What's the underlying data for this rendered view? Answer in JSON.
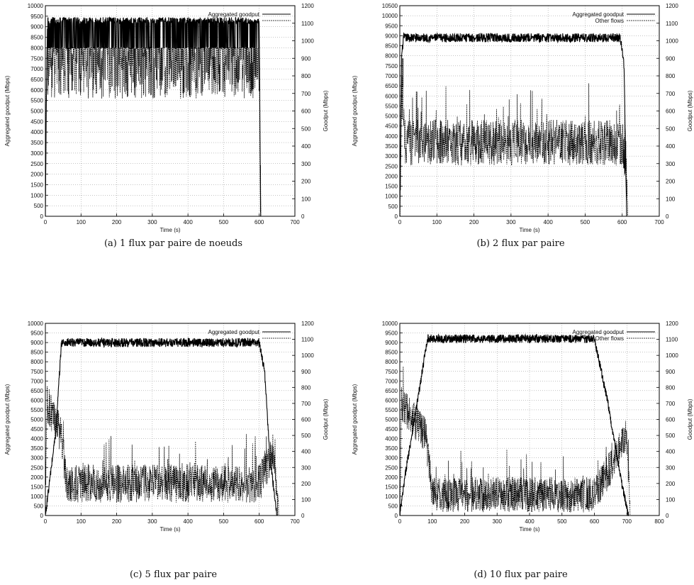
{
  "chart_data": [
    {
      "id": "a",
      "type": "line",
      "caption": "(a) 1 flux par paire de noeuds",
      "xlabel": "Time (s)",
      "ylabel": "Aggregated goodput (Mbps)",
      "y2label": "Goodput (Mbps)",
      "xlim": [
        0,
        700
      ],
      "xticks": [
        0,
        100,
        200,
        300,
        400,
        500,
        600,
        700
      ],
      "ylim": [
        0,
        10000
      ],
      "ystep": 500,
      "y2lim": [
        0,
        1200
      ],
      "y2step": 100,
      "grid": true,
      "legend_position": "top-right",
      "series": [
        {
          "name": "Aggregated goodput",
          "axis": "left",
          "style": "solid",
          "points": [
            [
              0,
              0
            ],
            [
              3,
              6000
            ],
            [
              6,
              9300
            ],
            [
              600,
              9300
            ],
            [
              602,
              4000
            ],
            [
              604,
              0
            ]
          ],
          "noise": 150,
          "low": 8000,
          "high": 9450,
          "dip_prob": 0.42
        },
        {
          "name": "",
          "axis": "right",
          "style": "dashed",
          "points": [
            [
              0,
              0
            ],
            [
              3,
              600
            ],
            [
              6,
              900
            ],
            [
              600,
              900
            ],
            [
              602,
              300
            ],
            [
              605,
              0
            ]
          ],
          "noise": 230,
          "low": 0,
          "high": 960,
          "dip_prob": 0.0
        }
      ]
    },
    {
      "id": "b",
      "type": "line",
      "caption": "(b) 2 flux par paire",
      "xlabel": "Time (s)",
      "ylabel": "Aggregated goodput (Mbps)",
      "y2label": "Goodput (Mbps)",
      "xlim": [
        0,
        700
      ],
      "xticks": [
        0,
        100,
        200,
        300,
        400,
        500,
        600,
        700
      ],
      "ylim": [
        0,
        10500
      ],
      "ystep": 500,
      "y2lim": [
        0,
        1200
      ],
      "y2step": 100,
      "grid": true,
      "legend_position": "top-right",
      "series": [
        {
          "name": "Aggregated goodput",
          "axis": "left",
          "style": "solid",
          "points": [
            [
              0,
              0
            ],
            [
              5,
              8000
            ],
            [
              10,
              8900
            ],
            [
              595,
              8900
            ],
            [
              605,
              7500
            ],
            [
              612,
              0
            ]
          ],
          "noise": 220,
          "low": 0,
          "high": 10000,
          "dip_prob": 0.0
        },
        {
          "name": "Other flows",
          "axis": "right",
          "style": "dashed",
          "points": [
            [
              0,
              0
            ],
            [
              5,
              700
            ],
            [
              15,
              420
            ],
            [
              600,
              420
            ],
            [
              610,
              300
            ],
            [
              615,
              0
            ]
          ],
          "noise": 130,
          "low": 0,
          "high": 900,
          "dip_prob": 0.0
        }
      ]
    },
    {
      "id": "c",
      "type": "line",
      "caption": "(c) 5 flux par paire",
      "xlabel": "Time (s)",
      "ylabel": "Aggregated goodput (Mbps)",
      "y2label": "Goodput (Mbps)",
      "xlim": [
        0,
        700
      ],
      "xticks": [
        0,
        100,
        200,
        300,
        400,
        500,
        600,
        700
      ],
      "ylim": [
        0,
        10000
      ],
      "ystep": 500,
      "y2lim": [
        0,
        1200
      ],
      "y2step": 100,
      "grid": true,
      "legend_position": "top-right",
      "series": [
        {
          "name": "Aggregated goodput",
          "axis": "left",
          "style": "solid",
          "points": [
            [
              0,
              0
            ],
            [
              10,
              1500
            ],
            [
              30,
              4500
            ],
            [
              45,
              9000
            ],
            [
              600,
              9000
            ],
            [
              615,
              7500
            ],
            [
              630,
              3000
            ],
            [
              650,
              0
            ]
          ],
          "noise": 230,
          "low": 0,
          "high": 9700,
          "dip_prob": 0.0
        },
        {
          "name": "",
          "axis": "right",
          "style": "dashed",
          "points": [
            [
              0,
              0
            ],
            [
              5,
              700
            ],
            [
              45,
              500
            ],
            [
              60,
              200
            ],
            [
              600,
              200
            ],
            [
              640,
              400
            ],
            [
              655,
              0
            ]
          ],
          "noise": 120,
          "low": 0,
          "high": 900,
          "dip_prob": 0.0
        }
      ]
    },
    {
      "id": "d",
      "type": "line",
      "caption": "(d) 10 flux par paire",
      "xlabel": "Time (s)",
      "ylabel": "Aggregated goodput (Mbps)",
      "y2label": "Goodput (Mbps)",
      "xlim": [
        0,
        800
      ],
      "xticks": [
        0,
        100,
        200,
        300,
        400,
        500,
        600,
        700,
        800
      ],
      "ylim": [
        0,
        10000
      ],
      "ystep": 500,
      "y2lim": [
        0,
        1200
      ],
      "y2step": 100,
      "grid": true,
      "legend_position": "top-right",
      "series": [
        {
          "name": "Aggregated goodput",
          "axis": "left",
          "style": "solid",
          "points": [
            [
              0,
              0
            ],
            [
              20,
              2500
            ],
            [
              60,
              6500
            ],
            [
              85,
              9200
            ],
            [
              600,
              9200
            ],
            [
              640,
              6000
            ],
            [
              680,
              2000
            ],
            [
              705,
              0
            ]
          ],
          "noise": 220,
          "low": 0,
          "high": 9750,
          "dip_prob": 0.0
        },
        {
          "name": "Other flows",
          "axis": "right",
          "style": "dashed",
          "points": [
            [
              0,
              0
            ],
            [
              5,
              700
            ],
            [
              80,
              500
            ],
            [
              100,
              130
            ],
            [
              600,
              130
            ],
            [
              650,
              300
            ],
            [
              700,
              500
            ],
            [
              710,
              0
            ]
          ],
          "noise": 110,
          "low": 0,
          "high": 950,
          "dip_prob": 0.0
        }
      ]
    }
  ]
}
